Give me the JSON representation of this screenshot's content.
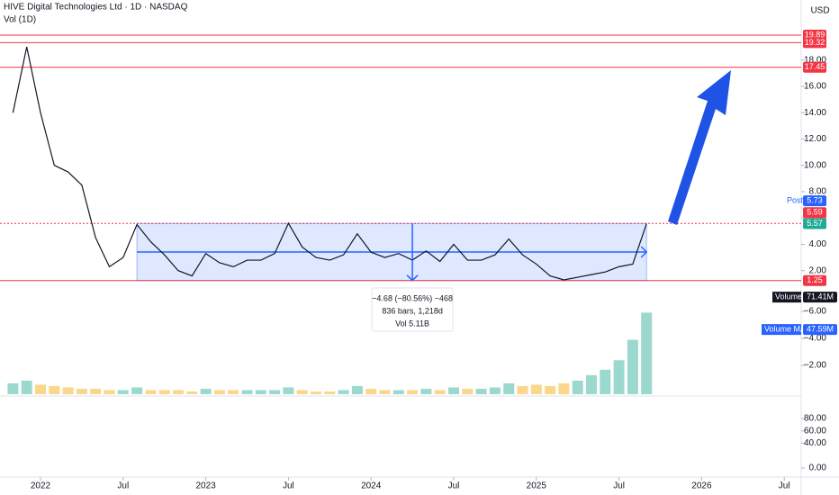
{
  "chart_data": {
    "type": "line",
    "title": "HIVE Digital Technologies Ltd · 1D · NASDAQ",
    "subtitle": "Vol (1D)",
    "currency": "USD",
    "x": [
      "2021-11",
      "2021-12",
      "2022-01",
      "2022-02",
      "2022-03",
      "2022-04",
      "2022-05",
      "2022-06",
      "2022-07",
      "2022-08",
      "2022-09",
      "2022-10",
      "2022-11",
      "2022-12",
      "2023-01",
      "2023-02",
      "2023-03",
      "2023-04",
      "2023-05",
      "2023-06",
      "2023-07",
      "2023-08",
      "2023-09",
      "2023-10",
      "2023-11",
      "2023-12",
      "2024-01",
      "2024-02",
      "2024-03",
      "2024-04",
      "2024-05",
      "2024-06",
      "2024-07",
      "2024-08",
      "2024-09",
      "2024-10",
      "2024-11",
      "2024-12",
      "2025-01",
      "2025-02",
      "2025-03",
      "2025-04",
      "2025-05",
      "2025-06",
      "2025-07",
      "2025-08",
      "2025-09"
    ],
    "series": [
      {
        "name": "HIVE",
        "color": "#131722",
        "values": [
          14,
          19,
          14,
          10,
          9.5,
          8.5,
          4.5,
          2.3,
          3.0,
          5.5,
          4.2,
          3.2,
          2.0,
          1.6,
          3.3,
          2.6,
          2.3,
          2.8,
          2.8,
          3.3,
          5.6,
          3.8,
          3.0,
          2.8,
          3.2,
          4.8,
          3.4,
          3.0,
          3.3,
          2.8,
          3.5,
          2.7,
          4.0,
          2.8,
          2.8,
          3.2,
          4.4,
          3.2,
          2.5,
          1.6,
          1.3,
          1.5,
          1.7,
          1.9,
          2.3,
          2.5,
          5.57
        ]
      }
    ],
    "ylim": [
      0,
      22.56
    ],
    "yticks": [
      {
        "value": 2,
        "label": "2.00"
      },
      {
        "value": 4,
        "label": "4.00"
      },
      {
        "value": 6,
        "label": "6.00"
      },
      {
        "value": 8,
        "label": "8.00"
      },
      {
        "value": 10,
        "label": "10.00"
      },
      {
        "value": 12,
        "label": "12.00"
      },
      {
        "value": 14,
        "label": "14.00"
      },
      {
        "value": 16,
        "label": "16.00"
      },
      {
        "value": 18,
        "label": "18.00"
      }
    ],
    "xticks": [
      {
        "value": "2022-01",
        "label": "2022"
      },
      {
        "value": "2022-07",
        "label": "Jul"
      },
      {
        "value": "2023-01",
        "label": "2023"
      },
      {
        "value": "2023-07",
        "label": "Jul"
      },
      {
        "value": "2024-01",
        "label": "2024"
      },
      {
        "value": "2024-07",
        "label": "Jul"
      },
      {
        "value": "2025-01",
        "label": "2025"
      },
      {
        "value": "2025-07",
        "label": "Jul"
      },
      {
        "value": "2026-01",
        "label": "2026"
      },
      {
        "value": "2026-07",
        "label": "Jul"
      }
    ],
    "levels": [
      {
        "value": 19.89,
        "color": "#f23645"
      },
      {
        "value": 19.32,
        "color": "#f23645"
      },
      {
        "value": 17.45,
        "color": "#f23645"
      },
      {
        "value": 5.59,
        "color": "#f23645"
      },
      {
        "value": 1.25,
        "color": "#f23645"
      }
    ],
    "post": {
      "name": "Post",
      "value": 5.73,
      "color": "#2962ff"
    },
    "last": {
      "value": 5.57,
      "color": "#22ab94"
    },
    "range_box": {
      "start": "2022-08",
      "end": "2025-09",
      "low": 1.25,
      "high": 5.59,
      "color": "#2962ff"
    },
    "measure": {
      "x": "2024-04",
      "line1": "−4.68 (−80.56%) −468",
      "line2": "836 bars, 1,218d",
      "line3": "Vol 5.11B"
    },
    "volume": {
      "name": "Volume",
      "last": 71.41,
      "last_label": "71.41M",
      "ma_name": "Volume MA",
      "ma_last": 47.59,
      "ma_last_label": "47.59M",
      "ylim": [
        0,
        71.5
      ],
      "values": [
        8,
        10,
        7,
        6,
        5,
        4,
        4,
        3,
        3,
        5,
        3,
        3,
        3,
        2,
        4,
        3,
        3,
        3,
        3,
        3,
        5,
        3,
        2,
        2,
        3,
        6,
        4,
        3,
        3,
        3,
        4,
        3,
        5,
        4,
        4,
        5,
        8,
        6,
        7,
        6,
        8,
        10,
        14,
        18,
        25,
        40,
        60
      ]
    },
    "indicator": {
      "ylim": [
        0,
        -7.2
      ],
      "yticks": [
        {
          "value": -2,
          "label": "−2.00"
        },
        {
          "value": -4,
          "label": "−4.00"
        },
        {
          "value": -6,
          "label": "−6.00"
        }
      ]
    },
    "lower_pane": {
      "ylim": [
        -14.5,
        116.4
      ],
      "yticks": [
        {
          "value": 80,
          "label": "80.00"
        },
        {
          "value": 60,
          "label": "60.00"
        },
        {
          "value": 40,
          "label": "40.00"
        },
        {
          "value": 0,
          "label": "0.00"
        }
      ]
    }
  }
}
